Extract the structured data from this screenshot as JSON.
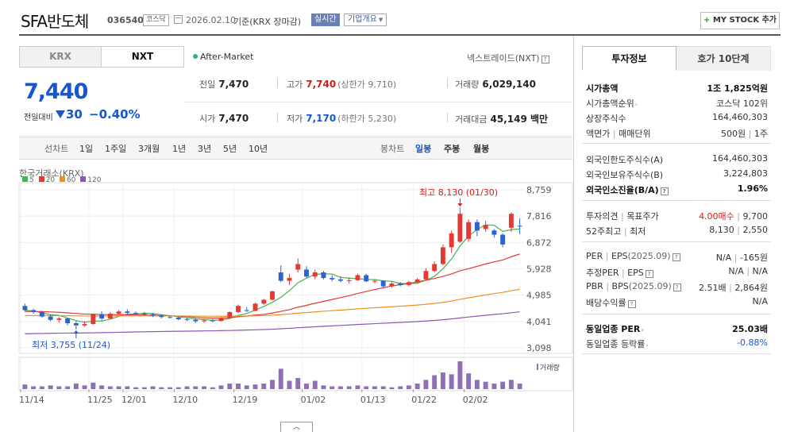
{
  "header": {
    "company": "SFA반도체",
    "code": "036540",
    "market_badge": "코스닥",
    "date": "2026.02.10",
    "basis": "기준(KRX 장마감)",
    "realtime_label": "실시간",
    "company_info_label": "기업개요",
    "mystock_label": "MY STOCK 추가"
  },
  "market_tabs": [
    {
      "label": "KRX",
      "active": false
    },
    {
      "label": "NXT",
      "active": true
    }
  ],
  "after_market_label": "After-Market",
  "nextrade_label": "넥스트레이드(NXT)",
  "price": {
    "current": "7,440",
    "compare_label": "전일대비",
    "change": "30",
    "change_pct": "−0.40%"
  },
  "quotes": {
    "prev_close": {
      "label": "전일",
      "value": "7,470"
    },
    "high": {
      "label": "고가",
      "value": "7,740",
      "sub": "(상한가 9,710)"
    },
    "volume": {
      "label": "거래량",
      "value": "6,029,140"
    },
    "open": {
      "label": "시가",
      "value": "7,470"
    },
    "low": {
      "label": "저가",
      "value": "7,170",
      "sub": "(하한가 5,230)"
    },
    "amount": {
      "label": "거래대금",
      "value": "45,149 백만"
    }
  },
  "chart_toolbar": {
    "line_chart": "선차트",
    "periods": [
      "1일",
      "1주일",
      "3개월",
      "1년",
      "3년",
      "5년",
      "10년"
    ],
    "candle_chart": "봉차트",
    "candle_periods": [
      {
        "label": "일봉",
        "active": true
      },
      {
        "label": "주봉",
        "active": false
      },
      {
        "label": "월봉",
        "active": false
      }
    ]
  },
  "chart_legend": {
    "exchange": "한국거래소(KRX)",
    "ma": [
      {
        "label": "5",
        "color": "#4caf50"
      },
      {
        "label": "20",
        "color": "#e53935"
      },
      {
        "label": "60",
        "color": "#f09020"
      },
      {
        "label": "120",
        "color": "#8e55b5"
      }
    ],
    "volume_label": "거래량",
    "high_annotation": "최고 8,130 (01/30)",
    "low_annotation": "최저 3,755 (11/24)"
  },
  "chart_data": {
    "type": "candlestick",
    "y_ticks": [
      "8,759",
      "7,816",
      "6,872",
      "5,928",
      "4,985",
      "4,041",
      "3,098"
    ],
    "ylim": [
      3098,
      8759
    ],
    "x_labels": [
      "11/14",
      "11/25",
      "12/01",
      "12/10",
      "12/19",
      "01/02",
      "01/13",
      "01/22",
      "02/02"
    ],
    "candles": [
      {
        "o": 4600,
        "h": 4680,
        "l": 4400,
        "c": 4450
      },
      {
        "o": 4450,
        "h": 4500,
        "l": 4320,
        "c": 4380
      },
      {
        "o": 4380,
        "h": 4420,
        "l": 4180,
        "c": 4220
      },
      {
        "o": 4220,
        "h": 4300,
        "l": 4050,
        "c": 4100
      },
      {
        "o": 4100,
        "h": 4200,
        "l": 4000,
        "c": 4150
      },
      {
        "o": 4150,
        "h": 4160,
        "l": 3900,
        "c": 3980
      },
      {
        "o": 3980,
        "h": 4050,
        "l": 3755,
        "c": 3900
      },
      {
        "o": 3900,
        "h": 4050,
        "l": 3850,
        "c": 3950
      },
      {
        "o": 3950,
        "h": 4320,
        "l": 3930,
        "c": 4300
      },
      {
        "o": 4300,
        "h": 4400,
        "l": 4080,
        "c": 4150
      },
      {
        "o": 4150,
        "h": 4380,
        "l": 4120,
        "c": 4320
      },
      {
        "o": 4320,
        "h": 4450,
        "l": 4280,
        "c": 4400
      },
      {
        "o": 4400,
        "h": 4480,
        "l": 4300,
        "c": 4350
      },
      {
        "o": 4350,
        "h": 4400,
        "l": 4280,
        "c": 4320
      },
      {
        "o": 4320,
        "h": 4380,
        "l": 4250,
        "c": 4300
      },
      {
        "o": 4300,
        "h": 4350,
        "l": 4200,
        "c": 4250
      },
      {
        "o": 4250,
        "h": 4300,
        "l": 4150,
        "c": 4200
      },
      {
        "o": 4200,
        "h": 4260,
        "l": 4150,
        "c": 4180
      },
      {
        "o": 4180,
        "h": 4220,
        "l": 4080,
        "c": 4120
      },
      {
        "o": 4120,
        "h": 4180,
        "l": 4050,
        "c": 4100
      },
      {
        "o": 4100,
        "h": 4150,
        "l": 3980,
        "c": 4050
      },
      {
        "o": 4050,
        "h": 4120,
        "l": 3990,
        "c": 4080
      },
      {
        "o": 4080,
        "h": 4130,
        "l": 4020,
        "c": 4060
      },
      {
        "o": 4060,
        "h": 4200,
        "l": 4040,
        "c": 4180
      },
      {
        "o": 4180,
        "h": 4400,
        "l": 4150,
        "c": 4380
      },
      {
        "o": 4380,
        "h": 4650,
        "l": 4350,
        "c": 4600
      },
      {
        "o": 4450,
        "h": 4560,
        "l": 4380,
        "c": 4420
      },
      {
        "o": 4420,
        "h": 4720,
        "l": 4400,
        "c": 4680
      },
      {
        "o": 4680,
        "h": 4850,
        "l": 4640,
        "c": 4820
      },
      {
        "o": 4820,
        "h": 5150,
        "l": 4800,
        "c": 5120
      },
      {
        "o": 5800,
        "h": 6050,
        "l": 5450,
        "c": 5500
      },
      {
        "o": 5500,
        "h": 5750,
        "l": 5350,
        "c": 5600
      },
      {
        "o": 5900,
        "h": 6300,
        "l": 5800,
        "c": 6100
      },
      {
        "o": 5900,
        "h": 6020,
        "l": 5600,
        "c": 5650
      },
      {
        "o": 5650,
        "h": 5900,
        "l": 5550,
        "c": 5800
      },
      {
        "o": 5800,
        "h": 5850,
        "l": 5550,
        "c": 5600
      },
      {
        "o": 5600,
        "h": 5700,
        "l": 5480,
        "c": 5550
      },
      {
        "o": 5550,
        "h": 5650,
        "l": 5450,
        "c": 5500
      },
      {
        "o": 5500,
        "h": 5600,
        "l": 5400,
        "c": 5520
      },
      {
        "o": 5520,
        "h": 5750,
        "l": 5500,
        "c": 5700
      },
      {
        "o": 5700,
        "h": 5750,
        "l": 5450,
        "c": 5480
      },
      {
        "o": 5480,
        "h": 5550,
        "l": 5400,
        "c": 5500
      },
      {
        "o": 5500,
        "h": 5520,
        "l": 5250,
        "c": 5300
      },
      {
        "o": 5300,
        "h": 5450,
        "l": 5250,
        "c": 5400
      },
      {
        "o": 5400,
        "h": 5450,
        "l": 5300,
        "c": 5350
      },
      {
        "o": 5350,
        "h": 5500,
        "l": 5300,
        "c": 5450
      },
      {
        "o": 5450,
        "h": 5600,
        "l": 5400,
        "c": 5550
      },
      {
        "o": 5550,
        "h": 5950,
        "l": 5500,
        "c": 5850
      },
      {
        "o": 5850,
        "h": 6200,
        "l": 5800,
        "c": 6100
      },
      {
        "o": 6100,
        "h": 6800,
        "l": 6050,
        "c": 6700
      },
      {
        "o": 6700,
        "h": 7300,
        "l": 6500,
        "c": 7200
      },
      {
        "o": 6900,
        "h": 8130,
        "l": 6850,
        "c": 7900
      },
      {
        "o": 7000,
        "h": 7700,
        "l": 6900,
        "c": 7600
      },
      {
        "o": 7600,
        "h": 7700,
        "l": 7100,
        "c": 7300
      },
      {
        "o": 7350,
        "h": 7650,
        "l": 7250,
        "c": 7500
      },
      {
        "o": 7300,
        "h": 7350,
        "l": 7050,
        "c": 7150
      },
      {
        "o": 7150,
        "h": 7200,
        "l": 6700,
        "c": 6800
      },
      {
        "o": 7400,
        "h": 7950,
        "l": 7250,
        "c": 7900
      },
      {
        "o": 7470,
        "h": 7740,
        "l": 7170,
        "c": 7440
      }
    ],
    "volume": [
      5,
      3,
      3,
      4,
      3,
      3,
      6,
      4,
      7,
      4,
      3,
      3,
      3,
      2,
      2,
      3,
      2,
      2,
      2,
      3,
      3,
      3,
      2,
      4,
      6,
      6,
      4,
      5,
      6,
      10,
      22,
      9,
      12,
      6,
      9,
      4,
      3,
      3,
      3,
      4,
      3,
      3,
      3,
      2,
      3,
      4,
      6,
      10,
      15,
      18,
      16,
      30,
      17,
      10,
      8,
      6,
      8,
      10,
      6
    ],
    "max_volume": 30
  },
  "right_tabs": [
    {
      "label": "투자정보",
      "active": true
    },
    {
      "label": "호가 10단계",
      "active": false
    }
  ],
  "invest_info": {
    "market_cap": {
      "label": "시가총액",
      "value": "1조 1,825억원"
    },
    "market_cap_rank": {
      "label": "시가총액순위",
      "value": "코스닥 102위"
    },
    "shares": {
      "label": "상장주식수",
      "value": "164,460,303"
    },
    "par_unit": {
      "label1": "액면가",
      "label2": "매매단위",
      "value1": "500원",
      "value2": "1주"
    },
    "foreign_limit": {
      "label": "외국인한도주식수(A)",
      "value": "164,460,303"
    },
    "foreign_hold": {
      "label": "외국인보유주식수(B)",
      "value": "3,224,803"
    },
    "foreign_ratio": {
      "label": "외국인소진율(B/A)",
      "value": "1.96%"
    },
    "opinion": {
      "label1": "투자의견",
      "label2": "목표주가",
      "value1": "4.00매수",
      "value2": "9,700"
    },
    "week52": {
      "label1": "52주최고",
      "label2": "최저",
      "value1": "8,130",
      "value2": "2,550"
    },
    "per_eps": {
      "label1": "PER",
      "label2": "EPS",
      "period": "(2025.09)",
      "value1": "N/A",
      "value2": "-165원"
    },
    "est_per_eps": {
      "label1": "추정PER",
      "label2": "EPS",
      "value1": "N/A",
      "value2": "N/A"
    },
    "pbr_bps": {
      "label1": "PBR",
      "label2": "BPS",
      "period": "(2025.09)",
      "value1": "2.51배",
      "value2": "2,864원"
    },
    "dividend": {
      "label": "배당수익률",
      "value": "N/A"
    },
    "sector_per": {
      "label": "동일업종 PER",
      "value": "25.03배"
    },
    "sector_change": {
      "label": "동일업종 등락률",
      "value": "-0.88%"
    }
  }
}
